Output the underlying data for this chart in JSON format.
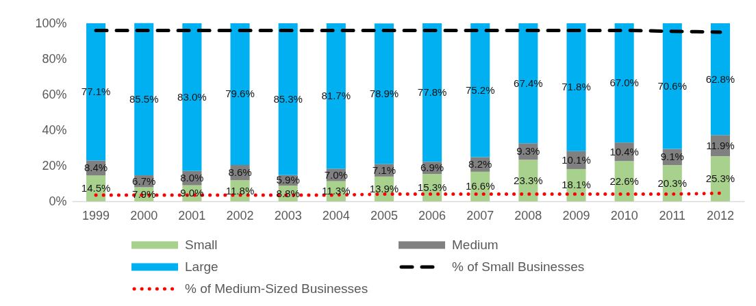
{
  "chart_data": {
    "type": "bar",
    "stacked": true,
    "legend": "bottom",
    "categories": [
      "1999",
      "2000",
      "2001",
      "2002",
      "2003",
      "2004",
      "2005",
      "2006",
      "2007",
      "2008",
      "2009",
      "2010",
      "2011",
      "2012"
    ],
    "ylim": [
      0,
      100
    ],
    "yticks": [
      {
        "value": 0,
        "label": "0%"
      },
      {
        "value": 20,
        "label": "20%"
      },
      {
        "value": 40,
        "label": "40%"
      },
      {
        "value": 60,
        "label": "60%"
      },
      {
        "value": 80,
        "label": "80%"
      },
      {
        "value": 100,
        "label": "100%"
      }
    ],
    "series": [
      {
        "name": "Small",
        "color": "#a9d18e",
        "values": [
          14.5,
          7.9,
          9.0,
          11.8,
          8.8,
          11.3,
          13.9,
          15.3,
          16.6,
          23.3,
          18.1,
          22.6,
          20.3,
          25.3
        ],
        "value_labels": [
          "14.5%",
          "7.9%",
          "9.0%",
          "11.8%",
          "8.8%",
          "11.3%",
          "13.9%",
          "15.3%",
          "16.6%",
          "23.3%",
          "18.1%",
          "22.6%",
          "20.3%",
          "25.3%"
        ]
      },
      {
        "name": "Medium",
        "color": "#808080",
        "values": [
          8.4,
          6.7,
          8.0,
          8.6,
          5.9,
          7.0,
          7.1,
          6.9,
          8.2,
          9.3,
          10.1,
          10.4,
          9.1,
          11.9
        ],
        "value_labels": [
          "8.4%",
          "6.7%",
          "8.0%",
          "8.6%",
          "5.9%",
          "7.0%",
          "7.1%",
          "6.9%",
          "8.2%",
          "9.3%",
          "10.1%",
          "10.4%",
          "9.1%",
          "11.9%"
        ]
      },
      {
        "name": "Large",
        "color": "#00b0f0",
        "values": [
          77.1,
          85.5,
          83.0,
          79.6,
          85.3,
          81.7,
          78.9,
          77.8,
          75.2,
          67.4,
          71.8,
          67.0,
          70.6,
          62.8
        ],
        "value_labels": [
          "77.1%",
          "85.5%",
          "83.0%",
          "79.6%",
          "85.3%",
          "81.7%",
          "78.9%",
          "77.8%",
          "75.2%",
          "67.4%",
          "71.8%",
          "67.0%",
          "70.6%",
          "62.8%"
        ]
      },
      {
        "name": "% of Small Businesses",
        "type": "line",
        "line_style": "dashed",
        "color": "#000000",
        "values": [
          96,
          96,
          96,
          96,
          96,
          96,
          96,
          96,
          96,
          96,
          96,
          96,
          95.5,
          95
        ]
      },
      {
        "name": "% of Medium-Sized Businesses",
        "type": "line",
        "line_style": "dotted",
        "color": "#ff0000",
        "values": [
          3.5,
          3.5,
          3.5,
          3.5,
          3.5,
          3.5,
          4,
          4,
          4,
          4,
          4,
          4,
          4,
          4.5
        ]
      }
    ]
  }
}
